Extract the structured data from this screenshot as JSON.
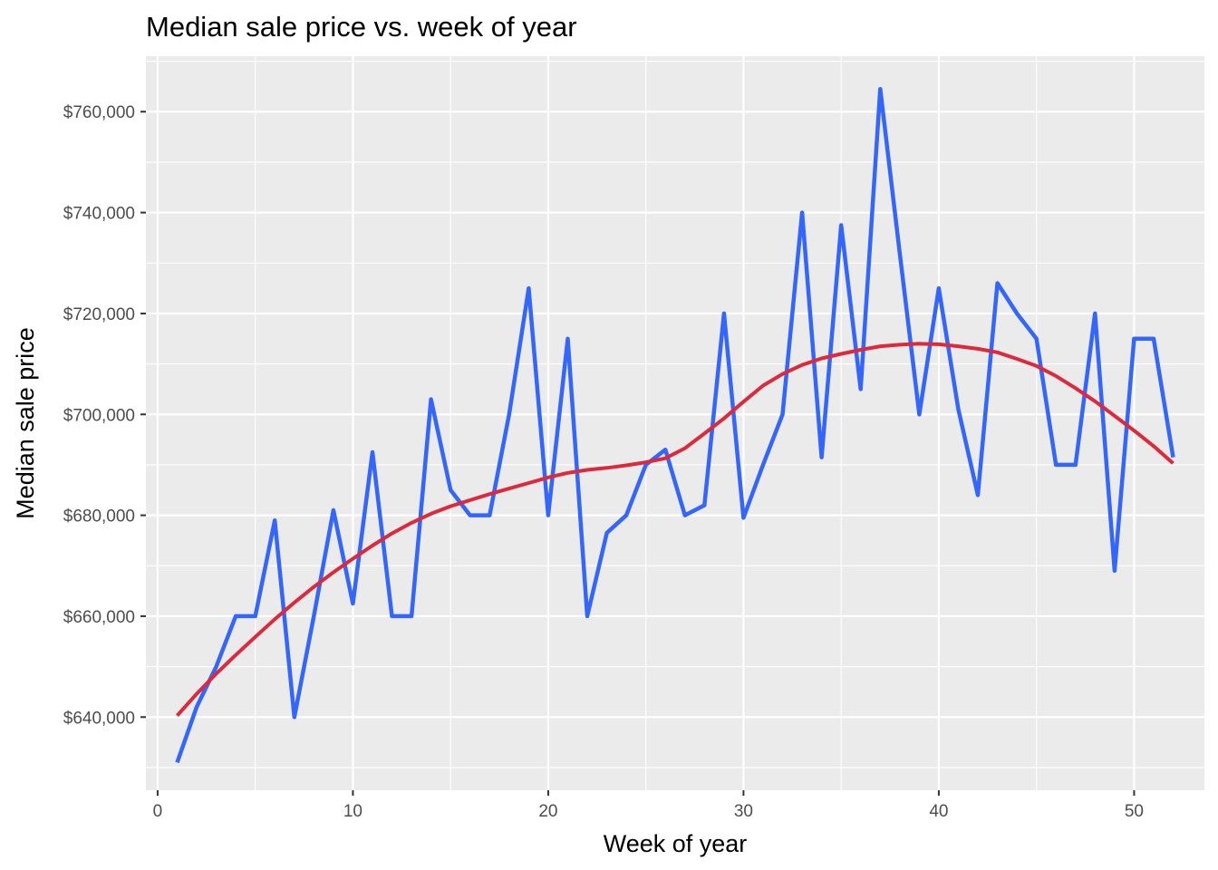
{
  "chart_data": {
    "type": "line",
    "title": "Median sale price vs. week of year",
    "xlabel": "Week of year",
    "ylabel": "Median sale price",
    "xlim": [
      -0.6,
      53.6
    ],
    "ylim": [
      625500,
      771000
    ],
    "x_ticks": [
      0,
      10,
      20,
      30,
      40,
      50
    ],
    "x_tick_labels": [
      "0",
      "10",
      "20",
      "30",
      "40",
      "50"
    ],
    "y_ticks": [
      640000,
      660000,
      680000,
      700000,
      720000,
      740000,
      760000
    ],
    "y_tick_labels": [
      "$640,000",
      "$660,000",
      "$680,000",
      "$700,000",
      "$720,000",
      "$740,000",
      "$760,000"
    ],
    "grid": true,
    "legend": "none",
    "series": [
      {
        "color": "#3366ff",
        "x": [
          1,
          2,
          3,
          4,
          5,
          6,
          7,
          8,
          9,
          10,
          11,
          12,
          13,
          14,
          15,
          16,
          17,
          18,
          19,
          20,
          21,
          22,
          23,
          24,
          25,
          26,
          27,
          28,
          29,
          30,
          31,
          32,
          33,
          34,
          35,
          36,
          37,
          38,
          39,
          40,
          41,
          42,
          43,
          44,
          45,
          46,
          47,
          48,
          49,
          50,
          51,
          52
        ],
        "y": [
          631000,
          642000,
          650000,
          660000,
          660000,
          679000,
          640000,
          660000,
          681000,
          662500,
          692500,
          660000,
          660000,
          703000,
          685000,
          680000,
          680000,
          700000,
          725000,
          680000,
          715000,
          660000,
          676500,
          680000,
          690000,
          693000,
          680000,
          682000,
          720000,
          679500,
          690000,
          700000,
          740000,
          691500,
          737500,
          705000,
          764500,
          732000,
          700000,
          725000,
          701000,
          684000,
          726000,
          720000,
          715000,
          690000,
          690000,
          720000,
          669000,
          715000,
          715000,
          691500
        ]
      },
      {
        "color": "#dc2a3c",
        "x": [
          1,
          2,
          3,
          4,
          5,
          6,
          7,
          8,
          9,
          10,
          11,
          12,
          13,
          14,
          15,
          16,
          17,
          18,
          19,
          20,
          21,
          22,
          23,
          24,
          25,
          26,
          27,
          28,
          29,
          30,
          31,
          32,
          33,
          34,
          35,
          36,
          37,
          38,
          39,
          40,
          41,
          42,
          43,
          44,
          45,
          46,
          47,
          48,
          49,
          50,
          51,
          52
        ],
        "y": [
          640300,
          644600,
          648600,
          652300,
          655900,
          659400,
          662700,
          665800,
          668700,
          671400,
          674000,
          676400,
          678500,
          680300,
          681800,
          683000,
          684200,
          685300,
          686400,
          687500,
          688400,
          689000,
          689400,
          689900,
          690500,
          691300,
          693300,
          696200,
          699200,
          702500,
          705700,
          708000,
          709800,
          711100,
          712000,
          712800,
          713500,
          713800,
          714000,
          713900,
          713500,
          713000,
          712300,
          711000,
          709600,
          707600,
          705200,
          702600,
          699700,
          696800,
          693700,
          690300
        ]
      }
    ]
  }
}
